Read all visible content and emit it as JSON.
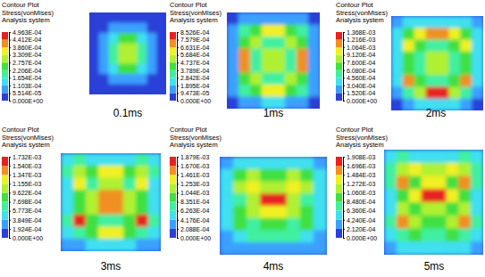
{
  "chart_data": [
    {
      "type": "contour",
      "title": "Contour Plot",
      "subtitle": "Stress(vonMises)",
      "annotations": [
        "Analysis system"
      ],
      "caption": "0.1ms",
      "colors": [
        "#2a40d8",
        "#3aa0ff",
        "#40e0f0",
        "#40f0a0",
        "#40e040",
        "#b0f030",
        "#f0f020",
        "#f09020",
        "#e82020"
      ],
      "colorbar": {
        "range": [
          0,
          0.0004963
        ],
        "ticks": [
          {
            "value": 0,
            "label": "0.000E+00"
          },
          {
            "value": 5.514e-05,
            "label": "5.514E-05"
          },
          {
            "value": 0.0001103,
            "label": "1.103E-04"
          },
          {
            "value": 0.0001654,
            "label": "1.654E-04"
          },
          {
            "value": 0.0002206,
            "label": "2.206E-04"
          },
          {
            "value": 0.0002757,
            "label": "2.757E-04"
          },
          {
            "value": 0.0003309,
            "label": "3.309E-04"
          },
          {
            "value": 0.000386,
            "label": "3.860E-04"
          },
          {
            "value": 0.0004412,
            "label": "4.412E-04"
          },
          {
            "value": 0.0004963,
            "label": "4.963E-04"
          }
        ]
      },
      "cells": [
        [
          2.8e-05,
          2.8e-05,
          2.8e-05,
          2.8e-05,
          2.8e-05,
          2.8e-05,
          2.8e-05,
          2.8e-05
        ],
        [
          2.8e-05,
          2.8e-05,
          8.3e-05,
          8.3e-05,
          8.3e-05,
          8.3e-05,
          2.8e-05,
          2.8e-05
        ],
        [
          2.8e-05,
          8.3e-05,
          0.00014,
          0.00025,
          0.00025,
          0.00014,
          8.3e-05,
          2.8e-05
        ],
        [
          2.8e-05,
          8.3e-05,
          0.00019,
          0.0003,
          0.0003,
          0.00019,
          8.3e-05,
          2.8e-05
        ],
        [
          2.8e-05,
          8.3e-05,
          0.00019,
          0.0003,
          0.0003,
          0.00019,
          8.3e-05,
          2.8e-05
        ],
        [
          2.8e-05,
          8.3e-05,
          0.00014,
          0.00025,
          0.00025,
          0.00014,
          8.3e-05,
          2.8e-05
        ],
        [
          2.8e-05,
          2.8e-05,
          8.3e-05,
          8.3e-05,
          8.3e-05,
          8.3e-05,
          2.8e-05,
          2.8e-05
        ],
        [
          2.8e-05,
          2.8e-05,
          2.8e-05,
          2.8e-05,
          2.8e-05,
          2.8e-05,
          2.8e-05,
          2.8e-05
        ]
      ]
    },
    {
      "type": "contour",
      "title": "Contour Plot",
      "subtitle": "Stress(vonMises)",
      "annotations": [
        "Analysis system"
      ],
      "caption": "1ms",
      "colors": [
        "#2a40d8",
        "#3aa0ff",
        "#40e0f0",
        "#40f0a0",
        "#40e040",
        "#b0f030",
        "#f0f020",
        "#f09020",
        "#e82020"
      ],
      "colorbar": {
        "range": [
          0,
          0.0008526
        ],
        "ticks": [
          {
            "value": 0,
            "label": "0.000E+00"
          },
          {
            "value": 9.473e-05,
            "label": "9.473E-05"
          },
          {
            "value": 0.0001895,
            "label": "1.895E-04"
          },
          {
            "value": 0.0002842,
            "label": "2.842E-04"
          },
          {
            "value": 0.0003789,
            "label": "3.789E-04"
          },
          {
            "value": 0.0004737,
            "label": "4.737E-04"
          },
          {
            "value": 0.0005684,
            "label": "5.684E-04"
          },
          {
            "value": 0.0006631,
            "label": "6.631E-04"
          },
          {
            "value": 0.0007579,
            "label": "7.579E-04"
          },
          {
            "value": 0.0008526,
            "label": "8.526E-04"
          }
        ]
      },
      "cells": [
        [
          4.7e-05,
          0.00014,
          0.00014,
          0.00014,
          0.00014,
          0.00014,
          0.00014,
          4.7e-05
        ],
        [
          0.00014,
          0.00033,
          0.00043,
          0.00062,
          0.00062,
          0.00043,
          0.00033,
          0.00014
        ],
        [
          0.00014,
          0.00043,
          0.00052,
          0.00033,
          0.00033,
          0.00052,
          0.00043,
          0.00014
        ],
        [
          0.00014,
          0.00071,
          0.00033,
          0.00052,
          0.00052,
          0.00033,
          0.00071,
          0.00014
        ],
        [
          0.00014,
          0.00071,
          0.00033,
          0.00052,
          0.00052,
          0.00033,
          0.00071,
          0.00014
        ],
        [
          0.00014,
          0.00043,
          0.00052,
          0.00033,
          0.00033,
          0.00052,
          0.00043,
          0.00014
        ],
        [
          0.00014,
          0.00033,
          0.00043,
          0.00062,
          0.00062,
          0.00043,
          0.00033,
          0.00014
        ],
        [
          4.7e-05,
          0.00014,
          0.00014,
          0.00024,
          0.00024,
          0.00014,
          0.00014,
          4.7e-05
        ]
      ]
    },
    {
      "type": "contour",
      "title": "Contour Plot",
      "subtitle": "Stress(vonMises)",
      "annotations": [
        "Analysis system"
      ],
      "caption": "2ms",
      "colors": [
        "#2a40d8",
        "#3aa0ff",
        "#40e0f0",
        "#40f0a0",
        "#40e040",
        "#b0f030",
        "#f0f020",
        "#f09020",
        "#e82020"
      ],
      "colorbar": {
        "range": [
          0,
          0.001368
        ],
        "ticks": [
          {
            "value": 0,
            "label": "0.000E+00"
          },
          {
            "value": 0.000152,
            "label": "1.520E-04"
          },
          {
            "value": 0.000304,
            "label": "3.040E-04"
          },
          {
            "value": 0.000456,
            "label": "4.560E-04"
          },
          {
            "value": 0.000608,
            "label": "6.080E-04"
          },
          {
            "value": 0.00076,
            "label": "7.600E-04"
          },
          {
            "value": 0.000912,
            "label": "9.120E-04"
          },
          {
            "value": 0.001064,
            "label": "1.064E-03"
          },
          {
            "value": 0.001216,
            "label": "1.216E-03"
          },
          {
            "value": 0.001368,
            "label": "1.368E-03"
          }
        ]
      },
      "cells": [
        [
          0.00023,
          0.00038,
          0.00038,
          0.00038,
          0.00038,
          0.00038,
          0.00038,
          0.00023
        ],
        [
          0.00038,
          0.00068,
          0.00099,
          0.00114,
          0.00114,
          0.00099,
          0.00068,
          0.00038
        ],
        [
          0.00038,
          0.00099,
          0.00068,
          0.00053,
          0.00053,
          0.00068,
          0.00099,
          0.00038
        ],
        [
          0.00038,
          0.00068,
          0.00053,
          0.00084,
          0.00084,
          0.00053,
          0.00068,
          0.00038
        ],
        [
          0.00038,
          0.00068,
          0.00053,
          0.00084,
          0.00084,
          0.00053,
          0.00068,
          0.00038
        ],
        [
          0.00038,
          0.00114,
          0.00068,
          0.00053,
          0.00053,
          0.00068,
          0.00114,
          0.00038
        ],
        [
          0.00023,
          0.00053,
          0.00084,
          0.00129,
          0.00129,
          0.00084,
          0.00053,
          0.00023
        ],
        [
          7.6e-05,
          0.00023,
          0.00038,
          0.00038,
          0.00038,
          0.00038,
          0.00023,
          7.6e-05
        ]
      ]
    },
    {
      "type": "contour",
      "title": "Contour Plot",
      "subtitle": "Stress(vonMises)",
      "annotations": [
        "Analysis system"
      ],
      "caption": "3ms",
      "colors": [
        "#2a40d8",
        "#3aa0ff",
        "#40e0f0",
        "#40f0a0",
        "#40e040",
        "#b0f030",
        "#f0f020",
        "#f09020",
        "#e82020"
      ],
      "colorbar": {
        "range": [
          0,
          0.001732
        ],
        "ticks": [
          {
            "value": 0,
            "label": "0.000E+00"
          },
          {
            "value": 0.0001924,
            "label": "1.924E-04"
          },
          {
            "value": 0.0003849,
            "label": "3.849E-04"
          },
          {
            "value": 0.0005773,
            "label": "5.773E-04"
          },
          {
            "value": 0.0007698,
            "label": "7.698E-04"
          },
          {
            "value": 0.0009622,
            "label": "9.622E-04"
          },
          {
            "value": 0.001155,
            "label": "1.155E-03"
          },
          {
            "value": 0.001347,
            "label": "1.347E-03"
          },
          {
            "value": 0.00154,
            "label": "1.540E-03"
          },
          {
            "value": 0.001732,
            "label": "1.732E-03"
          }
        ]
      },
      "cells": [
        [
          0.00048,
          0.00067,
          0.00048,
          0.00048,
          0.00048,
          0.00048,
          0.00067,
          0.00048
        ],
        [
          0.00067,
          0.00106,
          0.00087,
          0.00125,
          0.00125,
          0.00087,
          0.00106,
          0.00067
        ],
        [
          0.00048,
          0.00125,
          0.00067,
          0.00106,
          0.00106,
          0.00067,
          0.00125,
          0.00048
        ],
        [
          0.00048,
          0.00087,
          0.00106,
          0.00144,
          0.00144,
          0.00106,
          0.00087,
          0.00048
        ],
        [
          0.00048,
          0.00087,
          0.00106,
          0.00144,
          0.00144,
          0.00106,
          0.00087,
          0.00048
        ],
        [
          0.00067,
          0.00164,
          0.00087,
          0.00067,
          0.00067,
          0.00087,
          0.00164,
          0.00067
        ],
        [
          0.00048,
          0.00067,
          0.00087,
          0.00125,
          0.00125,
          0.00087,
          0.00067,
          0.00048
        ],
        [
          0.00029,
          0.00029,
          0.00048,
          0.00048,
          0.00048,
          0.00048,
          0.00029,
          0.00029
        ]
      ]
    },
    {
      "type": "contour",
      "title": "Contour Plot",
      "subtitle": "Stress(vonMises)",
      "annotations": [
        "Analysis system"
      ],
      "caption": "4ms",
      "colors": [
        "#2a40d8",
        "#3aa0ff",
        "#40e0f0",
        "#40f0a0",
        "#40e040",
        "#b0f030",
        "#f0f020",
        "#f09020",
        "#e82020"
      ],
      "colorbar": {
        "range": [
          0,
          0.001879
        ],
        "ticks": [
          {
            "value": 0,
            "label": "0.000E+00"
          },
          {
            "value": 0.0002088,
            "label": "2.088E-04"
          },
          {
            "value": 0.0004176,
            "label": "4.176E-04"
          },
          {
            "value": 0.0006263,
            "label": "6.263E-04"
          },
          {
            "value": 0.0008351,
            "label": "8.351E-04"
          },
          {
            "value": 0.001044,
            "label": "1.044E-03"
          },
          {
            "value": 0.001253,
            "label": "1.253E-03"
          },
          {
            "value": 0.001461,
            "label": "1.461E-03"
          },
          {
            "value": 0.00167,
            "label": "1.670E-03"
          },
          {
            "value": 0.001879,
            "label": "1.879E-03"
          }
        ]
      },
      "cells": [
        [
          0.00031,
          0.00052,
          0.00052,
          0.00052,
          0.00052,
          0.00052,
          0.00052,
          0.00031
        ],
        [
          0.00052,
          0.00094,
          0.00115,
          0.00094,
          0.00094,
          0.00115,
          0.00094,
          0.00052
        ],
        [
          0.00052,
          0.00115,
          0.00136,
          0.00115,
          0.00115,
          0.00136,
          0.00115,
          0.00052
        ],
        [
          0.00052,
          0.00073,
          0.00115,
          0.00177,
          0.00177,
          0.00115,
          0.00073,
          0.00052
        ],
        [
          0.00052,
          0.00094,
          0.00115,
          0.00136,
          0.00136,
          0.00115,
          0.00094,
          0.00052
        ],
        [
          0.00052,
          0.00094,
          0.00073,
          0.00094,
          0.00094,
          0.00073,
          0.00094,
          0.00052
        ],
        [
          0.00031,
          0.00052,
          0.00073,
          0.00073,
          0.00073,
          0.00073,
          0.00052,
          0.00031
        ],
        [
          0.00031,
          0.00031,
          0.00031,
          0.00031,
          0.00031,
          0.00031,
          0.00031,
          0.00031
        ]
      ]
    },
    {
      "type": "contour",
      "title": "Contour Plot",
      "subtitle": "Stress(vonMises)",
      "annotations": [
        "Analysis system"
      ],
      "caption": "5ms",
      "colors": [
        "#2a40d8",
        "#3aa0ff",
        "#40e0f0",
        "#40f0a0",
        "#40e040",
        "#b0f030",
        "#f0f020",
        "#f09020",
        "#e82020"
      ],
      "colorbar": {
        "range": [
          0,
          0.001908
        ],
        "ticks": [
          {
            "value": 0,
            "label": "0.000E+00"
          },
          {
            "value": 0.000212,
            "label": "2.120E-04"
          },
          {
            "value": 0.000424,
            "label": "4.240E-04"
          },
          {
            "value": 0.000636,
            "label": "6.360E-04"
          },
          {
            "value": 0.000848,
            "label": "8.480E-04"
          },
          {
            "value": 0.00106,
            "label": "1.060E-03"
          },
          {
            "value": 0.001272,
            "label": "1.272E-03"
          },
          {
            "value": 0.001484,
            "label": "1.484E-03"
          },
          {
            "value": 0.001696,
            "label": "1.696E-03"
          },
          {
            "value": 0.001908,
            "label": "1.908E-03"
          }
        ]
      },
      "cells": [
        [
          0.00053,
          0.00074,
          0.00053,
          0.00053,
          0.00053,
          0.00053,
          0.00074,
          0.00053
        ],
        [
          0.00074,
          0.00117,
          0.00138,
          0.00117,
          0.00117,
          0.00138,
          0.00117,
          0.00074
        ],
        [
          0.00074,
          0.00159,
          0.00095,
          0.00138,
          0.00138,
          0.00095,
          0.00159,
          0.00074
        ],
        [
          0.00053,
          0.00095,
          0.00138,
          0.0018,
          0.0018,
          0.00138,
          0.00095,
          0.00053
        ],
        [
          0.00053,
          0.00117,
          0.00095,
          0.00117,
          0.00117,
          0.00095,
          0.00117,
          0.00053
        ],
        [
          0.00074,
          0.00159,
          0.00117,
          0.00095,
          0.00095,
          0.00117,
          0.00159,
          0.00074
        ],
        [
          0.00053,
          0.00074,
          0.00095,
          0.00074,
          0.00074,
          0.00095,
          0.00074,
          0.00053
        ],
        [
          0.00032,
          0.00053,
          0.00053,
          0.00053,
          0.00053,
          0.00053,
          0.00053,
          0.00032
        ]
      ]
    }
  ]
}
